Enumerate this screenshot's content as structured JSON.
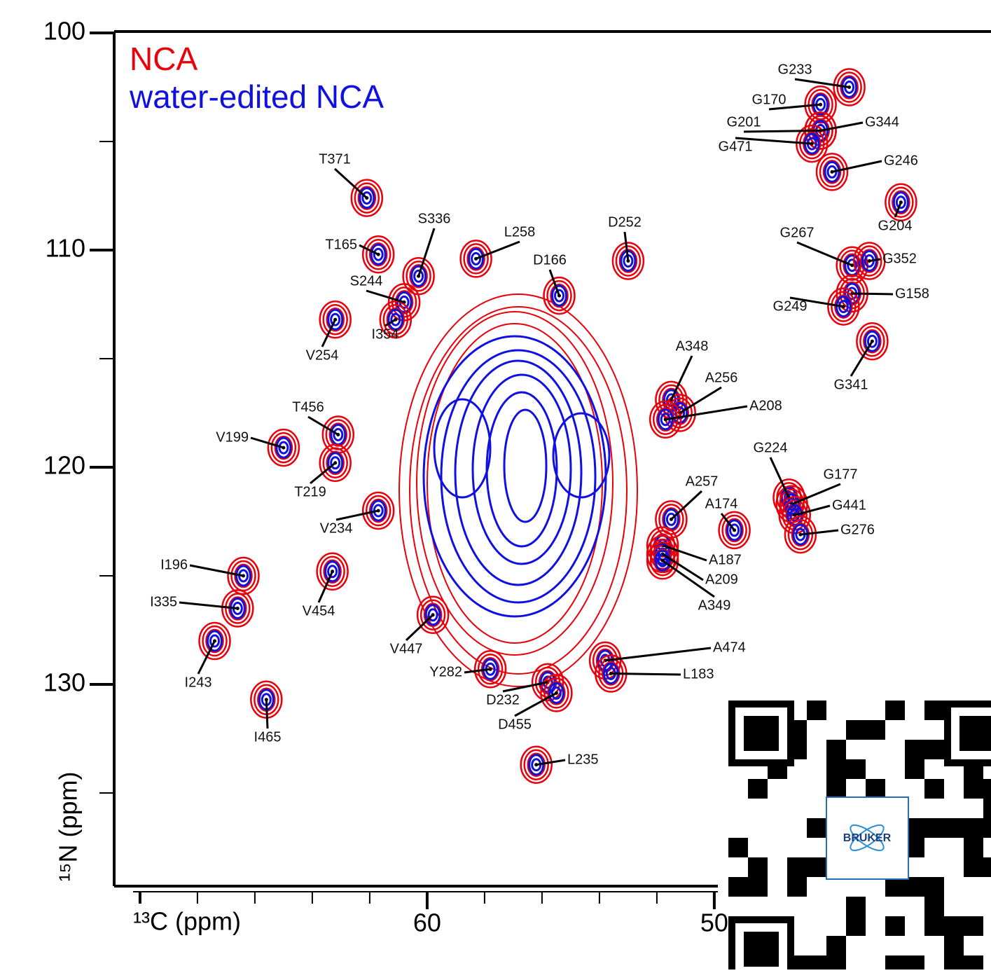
{
  "chart_data": {
    "type": "nmr-2d",
    "x_label": "¹³C (ppm)",
    "y_label": "¹⁵N (ppm)",
    "xlim": [
      70.9,
      40.4
    ],
    "ylim": [
      100,
      139.3
    ],
    "xticks": [
      60,
      50
    ],
    "xminor_ticks": [
      70,
      68,
      66,
      64,
      62,
      58,
      56,
      54,
      52
    ],
    "yticks": [
      100,
      110,
      120,
      130
    ],
    "yminor_ticks": [
      105,
      115,
      125,
      135
    ],
    "series": [
      {
        "name": "NCA",
        "color": "#e8000b"
      },
      {
        "name": "water-edited NCA",
        "color": "#1010e0"
      }
    ],
    "peaks": {
      "labels": [
        "T371",
        "T165",
        "S336",
        "S244",
        "I354",
        "V254",
        "L258",
        "D252",
        "D166",
        "T456",
        "V199",
        "T219",
        "V234",
        "I196",
        "I335",
        "V454",
        "I243",
        "I465",
        "V447",
        "Y282",
        "D232",
        "D455",
        "L235",
        "A474",
        "L183",
        "A348",
        "A256",
        "A208",
        "A257",
        "A174",
        "A187",
        "A209",
        "A349",
        "G224",
        "G177",
        "G441",
        "G276",
        "G233",
        "G170",
        "G344",
        "G201",
        "G471",
        "G246",
        "G204",
        "G267",
        "G352",
        "G158",
        "G249",
        "G341"
      ],
      "x": [
        62.1,
        61.7,
        60.3,
        60.8,
        61.1,
        63.2,
        58.3,
        53.0,
        55.4,
        63.1,
        65.0,
        63.2,
        61.7,
        66.4,
        66.6,
        63.3,
        67.4,
        65.6,
        59.8,
        57.8,
        55.8,
        55.5,
        56.2,
        53.8,
        53.6,
        51.5,
        51.2,
        51.7,
        51.5,
        49.3,
        51.8,
        51.8,
        51.8,
        47.4,
        47.3,
        47.2,
        47.0,
        45.3,
        46.3,
        46.3,
        46.3,
        46.6,
        45.9,
        43.5,
        45.2,
        44.6,
        45.2,
        45.5,
        44.5
      ],
      "y": [
        107.6,
        110.2,
        111.2,
        112.4,
        113.2,
        113.2,
        110.4,
        110.5,
        112.1,
        118.5,
        119.1,
        119.8,
        122.0,
        125.0,
        126.5,
        124.8,
        128.0,
        130.7,
        126.8,
        129.3,
        129.9,
        130.4,
        133.7,
        128.9,
        129.5,
        116.9,
        117.5,
        117.8,
        122.4,
        122.9,
        123.6,
        124.0,
        124.3,
        121.4,
        121.7,
        122.2,
        123.1,
        102.5,
        103.3,
        104.5,
        104.5,
        105.1,
        106.4,
        107.8,
        110.7,
        110.5,
        112.0,
        112.6,
        114.2
      ]
    }
  },
  "overlay": {
    "logo_text": "BRUKER"
  }
}
